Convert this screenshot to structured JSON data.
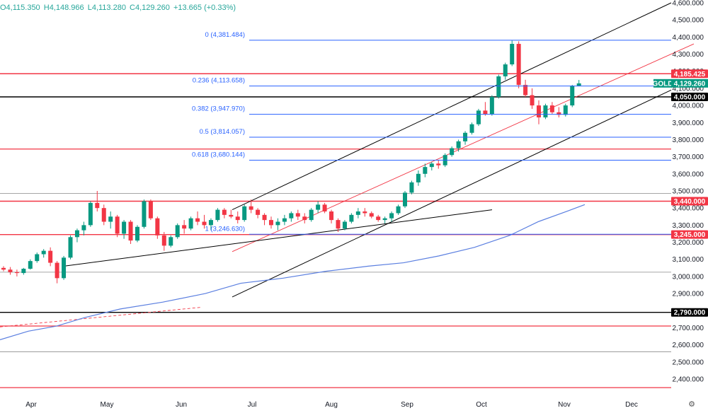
{
  "ohlc_header": {
    "open": "O4,115.350",
    "high": "H4,148.966",
    "low": "L4,113.280",
    "close": "C4,129.260",
    "change": "+13.665 (+0.33%)"
  },
  "chart_data": {
    "type": "candlestick",
    "symbol": "GOLD",
    "last_price": "4,129.260",
    "y_axis_ticks": [
      "4,600.000",
      "4,500.000",
      "4,400.000",
      "4,300.000",
      "4,200.000",
      "4,100.000",
      "4,000.000",
      "3,900.000",
      "3,800.000",
      "3,700.000",
      "3,600.000",
      "3,500.000",
      "3,400.000",
      "3,300.000",
      "3,200.000",
      "3,100.000",
      "3,000.000",
      "2,900.000",
      "2,800.000",
      "2,700.000",
      "2,600.000",
      "2,500.000",
      "2,400.000"
    ],
    "y_range": [
      2340,
      4640
    ],
    "x_axis_ticks": [
      "Apr",
      "May",
      "Jun",
      "Jul",
      "Aug",
      "Sep",
      "Oct",
      "Nov",
      "Dec"
    ],
    "fibonacci": [
      {
        "label": "0 (4,381.484)",
        "value": 4381.484
      },
      {
        "label": "0.236 (4,113.658)",
        "value": 4113.658
      },
      {
        "label": "0.382 (3,947.970)",
        "value": 3947.97
      },
      {
        "label": "0.5 (3,814.057)",
        "value": 3814.057
      },
      {
        "label": "0.618 (3,680.144)",
        "value": 3680.144
      },
      {
        "label": "1 (3,246.630)",
        "value": 3246.63
      }
    ],
    "horizontal_levels": [
      {
        "value": 4185.425,
        "label": "4,185.425",
        "color": "#f23645"
      },
      {
        "value": 4050.0,
        "label": "4,050.000",
        "color": "#000000"
      },
      {
        "value": 3440.0,
        "label": "3,440.000",
        "color": "#f23645"
      },
      {
        "value": 3245.0,
        "label": "3,245.000",
        "color": "#f23645"
      },
      {
        "value": 2790.0,
        "label": "2,790.000",
        "color": "#000000"
      }
    ],
    "candles": [
      [
        1,
        3050,
        3060,
        3030,
        3040
      ],
      [
        2,
        3040,
        3055,
        3010,
        3025
      ],
      [
        3,
        3025,
        3040,
        3000,
        3020
      ],
      [
        4,
        3020,
        3050,
        3010,
        3045
      ],
      [
        5,
        3045,
        3100,
        3040,
        3090
      ],
      [
        6,
        3090,
        3140,
        3080,
        3130
      ],
      [
        7,
        3130,
        3160,
        3110,
        3150
      ],
      [
        8,
        3150,
        3170,
        3060,
        3080
      ],
      [
        9,
        3080,
        3090,
        2960,
        2990
      ],
      [
        10,
        2990,
        3120,
        2980,
        3110
      ],
      [
        11,
        3110,
        3240,
        3100,
        3230
      ],
      [
        12,
        3230,
        3280,
        3200,
        3270
      ],
      [
        13,
        3270,
        3320,
        3240,
        3300
      ],
      [
        14,
        3300,
        3440,
        3290,
        3430
      ],
      [
        15,
        3430,
        3500,
        3380,
        3400
      ],
      [
        16,
        3400,
        3420,
        3300,
        3320
      ],
      [
        17,
        3320,
        3380,
        3280,
        3350
      ],
      [
        18,
        3350,
        3360,
        3230,
        3250
      ],
      [
        19,
        3250,
        3330,
        3220,
        3320
      ],
      [
        20,
        3320,
        3330,
        3190,
        3210
      ],
      [
        21,
        3210,
        3300,
        3200,
        3290
      ],
      [
        22,
        3290,
        3450,
        3280,
        3440
      ],
      [
        23,
        3440,
        3450,
        3330,
        3340
      ],
      [
        24,
        3340,
        3350,
        3220,
        3240
      ],
      [
        25,
        3240,
        3260,
        3150,
        3180
      ],
      [
        26,
        3180,
        3240,
        3170,
        3230
      ],
      [
        27,
        3230,
        3310,
        3220,
        3300
      ],
      [
        28,
        3300,
        3330,
        3250,
        3280
      ],
      [
        29,
        3280,
        3350,
        3270,
        3340
      ],
      [
        30,
        3340,
        3380,
        3300,
        3320
      ],
      [
        31,
        3320,
        3360,
        3280,
        3300
      ],
      [
        32,
        3300,
        3340,
        3270,
        3330
      ],
      [
        33,
        3330,
        3400,
        3320,
        3390
      ],
      [
        34,
        3390,
        3400,
        3340,
        3360
      ],
      [
        35,
        3360,
        3390,
        3340,
        3350
      ],
      [
        36,
        3350,
        3380,
        3310,
        3330
      ],
      [
        37,
        3330,
        3420,
        3320,
        3410
      ],
      [
        38,
        3410,
        3450,
        3370,
        3390
      ],
      [
        39,
        3390,
        3400,
        3340,
        3360
      ],
      [
        40,
        3360,
        3370,
        3300,
        3330
      ],
      [
        41,
        3330,
        3350,
        3280,
        3300
      ],
      [
        42,
        3300,
        3340,
        3270,
        3320
      ],
      [
        43,
        3320,
        3360,
        3300,
        3340
      ],
      [
        44,
        3340,
        3380,
        3320,
        3370
      ],
      [
        45,
        3370,
        3390,
        3330,
        3350
      ],
      [
        46,
        3350,
        3370,
        3310,
        3330
      ],
      [
        47,
        3330,
        3400,
        3320,
        3390
      ],
      [
        48,
        3390,
        3440,
        3370,
        3420
      ],
      [
        49,
        3420,
        3430,
        3370,
        3380
      ],
      [
        50,
        3380,
        3390,
        3310,
        3330
      ],
      [
        51,
        3330,
        3340,
        3260,
        3280
      ],
      [
        52,
        3280,
        3330,
        3270,
        3320
      ],
      [
        53,
        3320,
        3370,
        3310,
        3360
      ],
      [
        54,
        3360,
        3400,
        3340,
        3380
      ],
      [
        55,
        3380,
        3400,
        3350,
        3370
      ],
      [
        56,
        3370,
        3380,
        3340,
        3350
      ],
      [
        57,
        3350,
        3360,
        3320,
        3330
      ],
      [
        58,
        3330,
        3350,
        3310,
        3340
      ],
      [
        59,
        3340,
        3380,
        3320,
        3370
      ],
      [
        60,
        3370,
        3420,
        3360,
        3410
      ],
      [
        61,
        3410,
        3500,
        3400,
        3490
      ],
      [
        62,
        3490,
        3560,
        3480,
        3550
      ],
      [
        63,
        3550,
        3620,
        3530,
        3600
      ],
      [
        64,
        3600,
        3660,
        3580,
        3640
      ],
      [
        65,
        3640,
        3670,
        3620,
        3660
      ],
      [
        66,
        3660,
        3680,
        3630,
        3650
      ],
      [
        67,
        3650,
        3720,
        3640,
        3710
      ],
      [
        68,
        3710,
        3760,
        3700,
        3750
      ],
      [
        69,
        3750,
        3800,
        3730,
        3790
      ],
      [
        70,
        3790,
        3850,
        3770,
        3840
      ],
      [
        71,
        3840,
        3900,
        3830,
        3890
      ],
      [
        72,
        3890,
        3980,
        3880,
        3970
      ],
      [
        73,
        3970,
        4020,
        3940,
        3950
      ],
      [
        74,
        3950,
        4060,
        3940,
        4050
      ],
      [
        75,
        4050,
        4180,
        4040,
        4170
      ],
      [
        76,
        4170,
        4250,
        4150,
        4240
      ],
      [
        77,
        4240,
        4380,
        4230,
        4360
      ],
      [
        78,
        4360,
        4375,
        4100,
        4120
      ],
      [
        79,
        4120,
        4150,
        4050,
        4060
      ],
      [
        80,
        4060,
        4100,
        3980,
        4000
      ],
      [
        81,
        4000,
        4030,
        3890,
        3930
      ],
      [
        82,
        3930,
        4010,
        3920,
        4000
      ],
      [
        83,
        4000,
        4020,
        3950,
        3960
      ],
      [
        84,
        3960,
        3990,
        3930,
        3945
      ],
      [
        85,
        3945,
        4010,
        3935,
        4000
      ],
      [
        86,
        4000,
        4120,
        3990,
        4115
      ],
      [
        87,
        4115,
        4149,
        4113,
        4129
      ]
    ]
  },
  "bottom_tools": {
    "settings_icon": "gear-icon"
  }
}
